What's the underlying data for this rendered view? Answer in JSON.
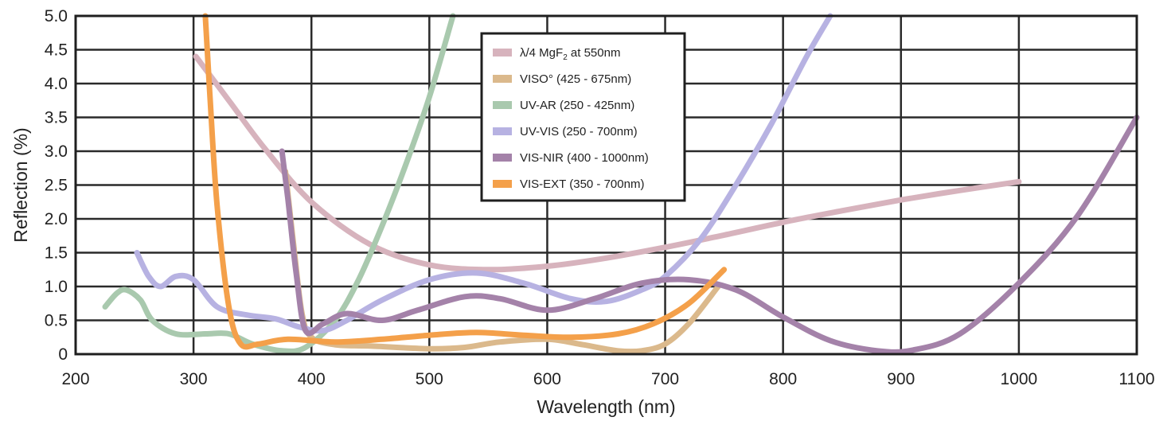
{
  "chart_data": {
    "type": "line",
    "xlabel": "Wavelength (nm)",
    "ylabel": "Reflection (%)",
    "xlim": [
      200,
      1100
    ],
    "ylim": [
      0,
      5.0
    ],
    "x_ticks": [
      "200",
      "300",
      "400",
      "500",
      "600",
      "700",
      "800",
      "900",
      "1000",
      "1100"
    ],
    "y_ticks": [
      "0",
      "0.5",
      "1.0",
      "1.5",
      "2.0",
      "2.5",
      "3.0",
      "3.5",
      "4.0",
      "4.5",
      "5.0"
    ],
    "grid": true,
    "legend_position": "top-center",
    "series": [
      {
        "name": "λ/4 MgF",
        "name_sub": "2",
        "name_suffix": " at 550nm",
        "color": "#d7b3bd",
        "points": [
          [
            302,
            4.4
          ],
          [
            330,
            3.75
          ],
          [
            360,
            3.05
          ],
          [
            400,
            2.25
          ],
          [
            450,
            1.62
          ],
          [
            500,
            1.32
          ],
          [
            550,
            1.25
          ],
          [
            600,
            1.3
          ],
          [
            650,
            1.42
          ],
          [
            700,
            1.58
          ],
          [
            750,
            1.76
          ],
          [
            800,
            1.95
          ],
          [
            850,
            2.12
          ],
          [
            900,
            2.28
          ],
          [
            950,
            2.42
          ],
          [
            1000,
            2.55
          ]
        ]
      },
      {
        "name": "VISO° (425 - 675nm)",
        "color": "#dbb98c",
        "points": [
          [
            378,
            2.7
          ],
          [
            385,
            1.6
          ],
          [
            392,
            0.6
          ],
          [
            400,
            0.25
          ],
          [
            420,
            0.14
          ],
          [
            450,
            0.12
          ],
          [
            500,
            0.08
          ],
          [
            530,
            0.1
          ],
          [
            560,
            0.18
          ],
          [
            600,
            0.22
          ],
          [
            630,
            0.14
          ],
          [
            660,
            0.05
          ],
          [
            680,
            0.05
          ],
          [
            700,
            0.15
          ],
          [
            720,
            0.45
          ],
          [
            745,
            1.0
          ]
        ]
      },
      {
        "name": "UV-AR (250 - 425nm)",
        "color": "#a9c9ae",
        "points": [
          [
            225,
            0.7
          ],
          [
            235,
            0.9
          ],
          [
            243,
            0.95
          ],
          [
            255,
            0.8
          ],
          [
            265,
            0.5
          ],
          [
            285,
            0.3
          ],
          [
            310,
            0.3
          ],
          [
            330,
            0.3
          ],
          [
            350,
            0.15
          ],
          [
            375,
            0.05
          ],
          [
            395,
            0.1
          ],
          [
            420,
            0.5
          ],
          [
            440,
            1.1
          ],
          [
            460,
            1.9
          ],
          [
            480,
            2.8
          ],
          [
            500,
            3.8
          ],
          [
            520,
            5.0
          ]
        ]
      },
      {
        "name": "UV-VIS (250 - 700nm)",
        "color": "#b7b2e2",
        "points": [
          [
            252,
            1.5
          ],
          [
            262,
            1.15
          ],
          [
            272,
            1.0
          ],
          [
            285,
            1.15
          ],
          [
            300,
            1.1
          ],
          [
            320,
            0.7
          ],
          [
            345,
            0.58
          ],
          [
            370,
            0.52
          ],
          [
            390,
            0.4
          ],
          [
            410,
            0.35
          ],
          [
            430,
            0.5
          ],
          [
            460,
            0.8
          ],
          [
            500,
            1.1
          ],
          [
            540,
            1.2
          ],
          [
            580,
            1.05
          ],
          [
            620,
            0.82
          ],
          [
            650,
            0.78
          ],
          [
            680,
            0.95
          ],
          [
            700,
            1.15
          ],
          [
            730,
            1.7
          ],
          [
            760,
            2.5
          ],
          [
            790,
            3.4
          ],
          [
            820,
            4.4
          ],
          [
            840,
            5.0
          ]
        ]
      },
      {
        "name": "VIS-NIR (400 - 1000nm)",
        "color": "#a482a9",
        "points": [
          [
            375,
            3.0
          ],
          [
            380,
            2.3
          ],
          [
            387,
            1.2
          ],
          [
            395,
            0.35
          ],
          [
            410,
            0.45
          ],
          [
            430,
            0.6
          ],
          [
            460,
            0.5
          ],
          [
            490,
            0.65
          ],
          [
            530,
            0.85
          ],
          [
            560,
            0.82
          ],
          [
            600,
            0.65
          ],
          [
            640,
            0.82
          ],
          [
            680,
            1.05
          ],
          [
            720,
            1.1
          ],
          [
            760,
            0.95
          ],
          [
            800,
            0.55
          ],
          [
            840,
            0.2
          ],
          [
            880,
            0.05
          ],
          [
            910,
            0.06
          ],
          [
            950,
            0.3
          ],
          [
            1000,
            1.05
          ],
          [
            1050,
            2.05
          ],
          [
            1100,
            3.5
          ]
        ]
      },
      {
        "name": "VIS-EXT (350 - 700nm)",
        "color": "#f4a04a",
        "points": [
          [
            310,
            5.0
          ],
          [
            314,
            3.8
          ],
          [
            320,
            2.2
          ],
          [
            330,
            0.7
          ],
          [
            340,
            0.15
          ],
          [
            355,
            0.15
          ],
          [
            380,
            0.22
          ],
          [
            420,
            0.18
          ],
          [
            460,
            0.22
          ],
          [
            500,
            0.28
          ],
          [
            540,
            0.32
          ],
          [
            580,
            0.28
          ],
          [
            620,
            0.25
          ],
          [
            660,
            0.3
          ],
          [
            690,
            0.45
          ],
          [
            720,
            0.75
          ],
          [
            750,
            1.25
          ]
        ]
      }
    ]
  }
}
